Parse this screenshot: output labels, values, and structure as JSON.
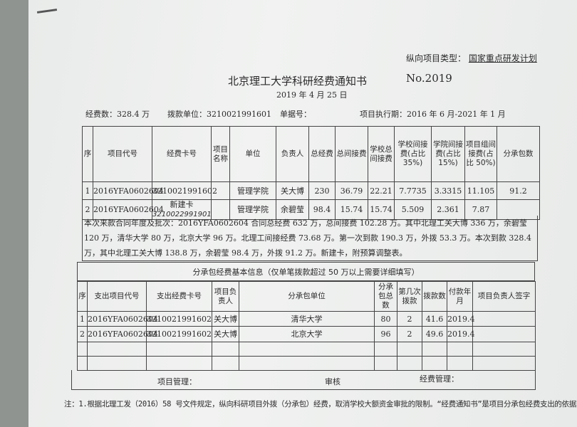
{
  "header": {
    "project_type_label": "纵向项目类型：",
    "project_type_value": "国家重点研发计划",
    "title": "北京理工大学科研经费通知书",
    "number": "No.2019",
    "date": "2019 年 4 月 25 日",
    "funds": "经费数：328.4 万",
    "payer": "拨款单位：3210021991601",
    "doc_no": "单据号：",
    "period": "项目执行期：2016 年 6 月-2021 年 1 月"
  },
  "main_table": {
    "columns": [
      "序",
      "项目代号",
      "经费卡号",
      "项目名称",
      "单位",
      "负责人",
      "总经费",
      "总间接费",
      "学校总间接费",
      "学校间接费(占比 35%)",
      "学院间接费(占比 15%)",
      "项目组间接费(占比 50%)",
      "分承包数"
    ],
    "rows": [
      [
        "1",
        "2016YFA0602604",
        "3210021991602",
        "",
        "管理学院",
        "关大博",
        "230",
        "36.79",
        "22.21",
        "7.7735",
        "3.3315",
        "11.105",
        "91.2"
      ],
      [
        "2",
        "2016YFA0602604",
        "新建卡",
        "",
        "管理学院",
        "余碧莹",
        "98.4",
        "15.74",
        "15.74",
        "5.509",
        "2.361",
        "7.87",
        ""
      ]
    ],
    "handwritten_card": "3210022991901"
  },
  "note": "本次来款合同年度及批次：2016YFA0602604 合同总经费 632 万，总间接费 102.28 万。其中北理工关大博 336 万，余碧莹 120 万，清华大学 80 万，北京大学 96 万。北理工间接经费 73.68 万。第一次到款 190.3 万，外拨 53.3 万。本次到款 328.4 万，其中北理工关大博 138.8 万，余碧莹 98.4 万，外拨 91.2 万。新建卡，附预算调整表。",
  "sub_section_title": "分承包经费基本信息（仅单笔拨款超过 50 万以上需要详细填写）",
  "sub_table": {
    "columns": [
      "序",
      "支出项目代号",
      "支出经费卡号",
      "项目负责人",
      "分承包单位",
      "分承包总数",
      "第几次拨款",
      "拨款数",
      "付款年月",
      "项目负责人签字"
    ],
    "rows": [
      [
        "1",
        "2016YFA0602604",
        "3210021991602",
        "关大博",
        "清华大学",
        "80",
        "2",
        "41.6",
        "2019.4",
        ""
      ],
      [
        "2",
        "2016YFA0602604",
        "3210021991602",
        "关大博",
        "北京大学",
        "96",
        "2",
        "49.6",
        "2019.4",
        ""
      ]
    ]
  },
  "signatures": {
    "project_mgmt": "项目管理：",
    "review": "审核",
    "finance_mgmt": "经费管理："
  },
  "footnote": "注：1.根据北理工发（2016）58 号文件规定，纵向科研项目外拨（分承包）经费，取消学校大额资金审批的限制。“经费通知书”是项目分承包经费支出的依据"
}
